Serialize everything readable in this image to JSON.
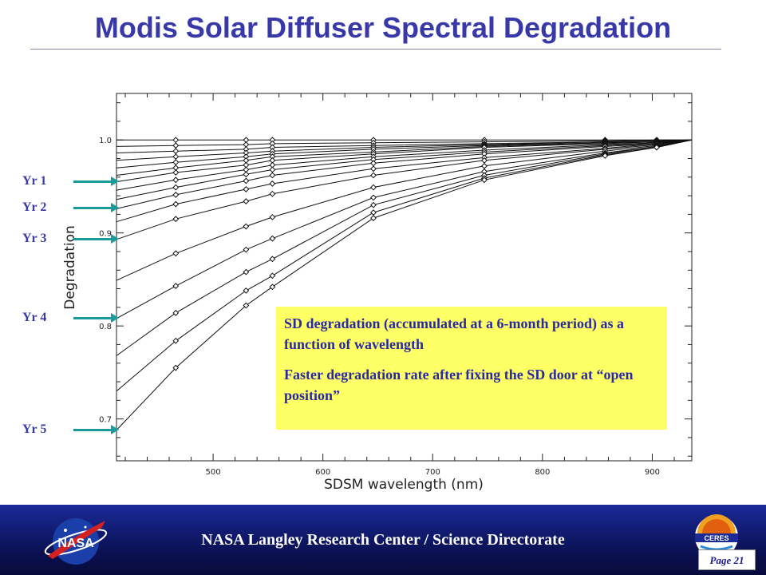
{
  "slide": {
    "title": "Modis Solar Diffuser Spectral Degradation",
    "footer": "NASA Langley Research Center / Science Directorate",
    "page_label": "Page 21",
    "logo_left": "NASA",
    "logo_right": "CERES"
  },
  "year_markers": [
    {
      "label": "Yr 1",
      "degradation": 0.955
    },
    {
      "label": "Yr 2",
      "degradation": 0.926
    },
    {
      "label": "Yr 3",
      "degradation": 0.893
    },
    {
      "label": "Yr 4",
      "degradation": 0.808
    },
    {
      "label": "Yr 5",
      "degradation": 0.688
    }
  ],
  "note": {
    "line1": "SD degradation (accumulated at a 6-month period) as a function of wavelength",
    "line2": "Faster degradation rate after fixing the SD door at “open position”"
  },
  "colors": {
    "title": "#3838a8",
    "labels": "#3a3aa6",
    "arrows": "#1a9a9a",
    "note_bg": "#ffff66",
    "footer_bg": "#0a1050"
  },
  "chart_data": {
    "type": "line",
    "xlabel": "SDSM wavelength (nm)",
    "ylabel": "Degradation",
    "xlim": [
      412,
      936
    ],
    "ylim": [
      0.655,
      1.05
    ],
    "x_ticks": [
      500,
      600,
      700,
      800,
      900
    ],
    "y_ticks": [
      0.7,
      0.8,
      0.9,
      1.0
    ],
    "y_tick_labels": [
      "0.7",
      "0.8",
      "0.9",
      "1.0"
    ],
    "grid": false,
    "marker": "diamond",
    "x": [
      412,
      466,
      530,
      554,
      646,
      747,
      857,
      904,
      936
    ],
    "series": [
      {
        "values": [
          1.0,
          1.0,
          1.0,
          1.0,
          1.0,
          1.0,
          1.0,
          1.0,
          1.0
        ]
      },
      {
        "values": [
          0.993,
          0.994,
          0.995,
          0.996,
          0.997,
          0.998,
          0.999,
          1.0,
          1.0
        ]
      },
      {
        "values": [
          0.986,
          0.988,
          0.99,
          0.992,
          0.994,
          0.996,
          0.998,
          0.999,
          1.0
        ]
      },
      {
        "values": [
          0.978,
          0.982,
          0.986,
          0.988,
          0.992,
          0.995,
          0.998,
          0.999,
          1.0
        ]
      },
      {
        "values": [
          0.97,
          0.976,
          0.982,
          0.985,
          0.99,
          0.994,
          0.997,
          0.998,
          1.0
        ]
      },
      {
        "values": [
          0.962,
          0.97,
          0.978,
          0.982,
          0.987,
          0.993,
          0.997,
          0.998,
          1.0
        ]
      },
      {
        "values": [
          0.955,
          0.965,
          0.973,
          0.978,
          0.985,
          0.992,
          0.996,
          0.998,
          1.0
        ]
      },
      {
        "values": [
          0.946,
          0.957,
          0.968,
          0.973,
          0.982,
          0.989,
          0.995,
          0.997,
          1.0
        ]
      },
      {
        "values": [
          0.936,
          0.949,
          0.963,
          0.968,
          0.979,
          0.987,
          0.994,
          0.997,
          1.0
        ]
      },
      {
        "values": [
          0.926,
          0.941,
          0.956,
          0.962,
          0.975,
          0.985,
          0.993,
          0.996,
          1.0
        ]
      },
      {
        "values": [
          0.912,
          0.931,
          0.947,
          0.953,
          0.969,
          0.981,
          0.991,
          0.996,
          1.0
        ]
      },
      {
        "values": [
          0.893,
          0.915,
          0.934,
          0.942,
          0.962,
          0.978,
          0.99,
          0.995,
          1.0
        ]
      },
      {
        "values": [
          0.849,
          0.878,
          0.907,
          0.917,
          0.949,
          0.972,
          0.988,
          0.994,
          1.0
        ]
      },
      {
        "values": [
          0.808,
          0.843,
          0.882,
          0.894,
          0.938,
          0.966,
          0.986,
          0.993,
          1.0
        ]
      },
      {
        "values": [
          0.768,
          0.814,
          0.858,
          0.872,
          0.93,
          0.962,
          0.985,
          0.993,
          1.0
        ]
      },
      {
        "values": [
          0.73,
          0.784,
          0.838,
          0.854,
          0.922,
          0.959,
          0.984,
          0.992,
          1.0
        ]
      },
      {
        "values": [
          0.688,
          0.755,
          0.822,
          0.842,
          0.916,
          0.957,
          0.983,
          0.992,
          1.0
        ]
      }
    ]
  }
}
